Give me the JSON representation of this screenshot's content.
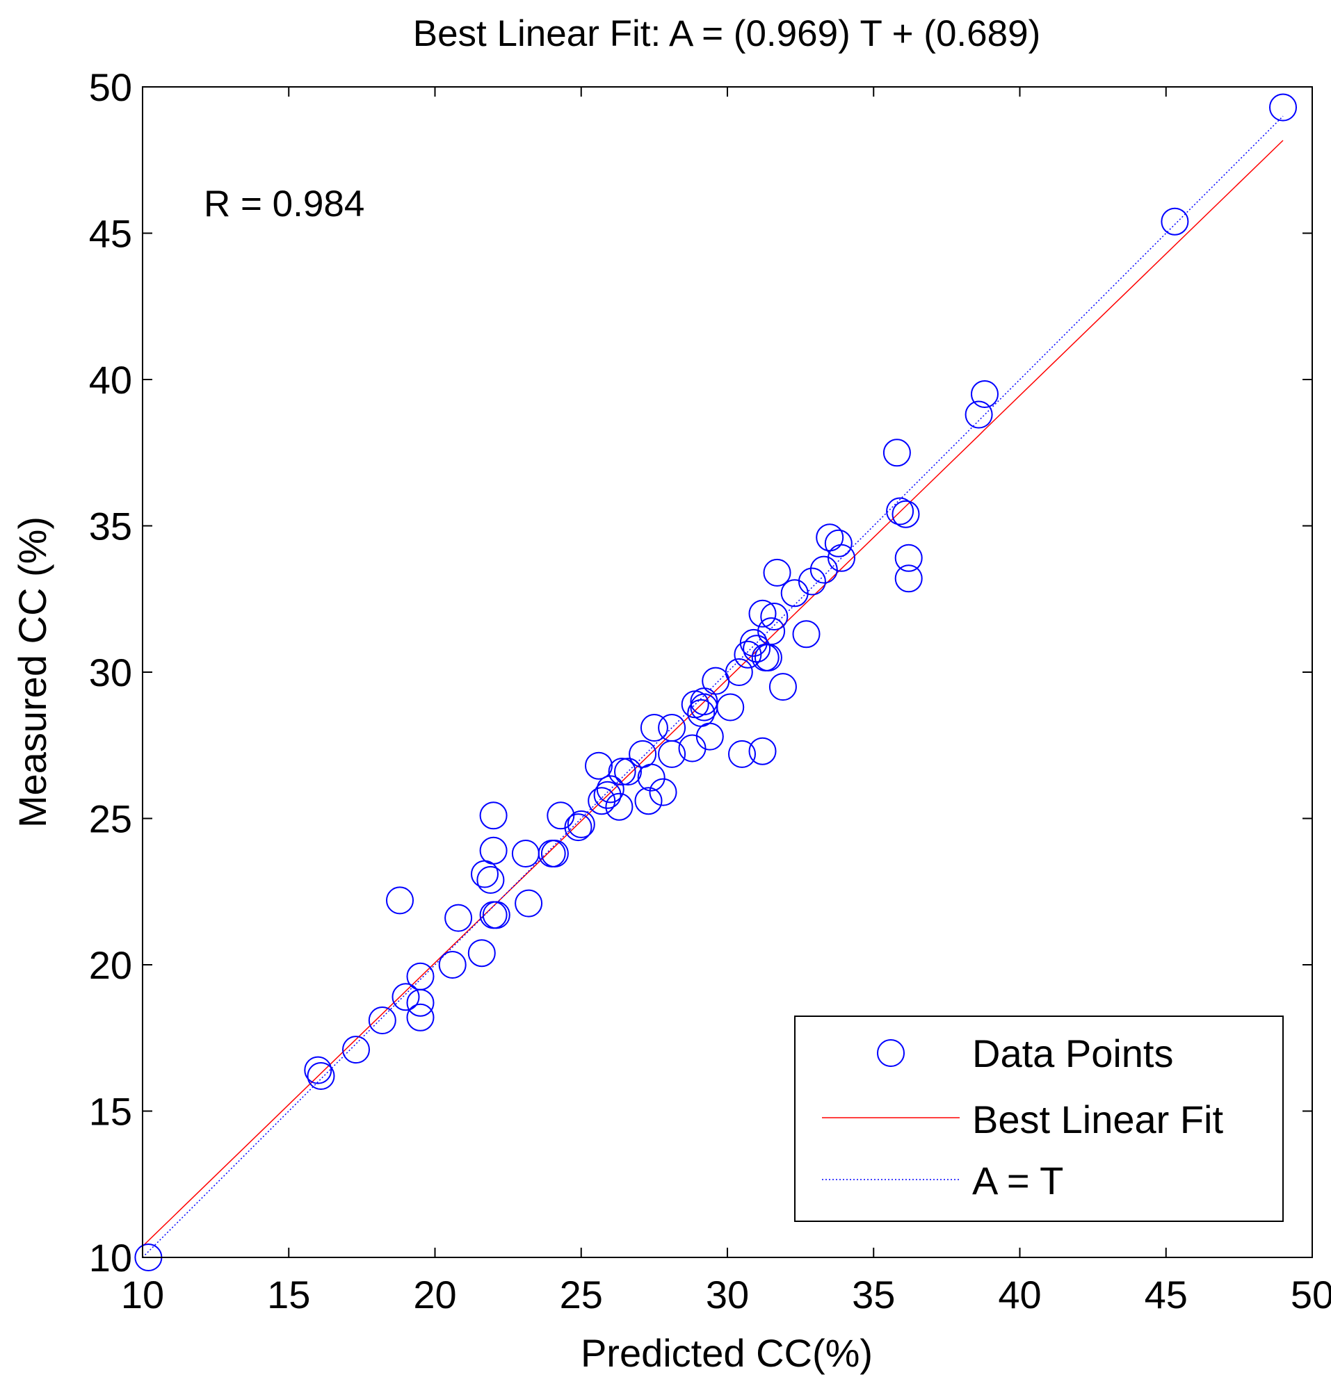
{
  "chart_data": {
    "type": "scatter",
    "title": "Best Linear Fit:  A = (0.969) T + (0.689)",
    "xlabel": "Predicted CC(%)",
    "ylabel": "Measured CC (%)",
    "annotation": "R = 0.984",
    "xlim": [
      10,
      50
    ],
    "ylim": [
      10,
      50
    ],
    "xticks": [
      "10",
      "15",
      "20",
      "25",
      "30",
      "35",
      "40",
      "45",
      "50"
    ],
    "yticks": [
      "10",
      "15",
      "20",
      "25",
      "30",
      "35",
      "40",
      "45",
      "50"
    ],
    "grid": false,
    "legend": {
      "position": "bottom-right",
      "entries": [
        "Data Points",
        "Best Linear Fit",
        "A = T"
      ]
    },
    "series": [
      {
        "name": "Data Points",
        "kind": "scatter",
        "marker": "circle-open",
        "color": "#0000ff",
        "points": [
          [
            10.2,
            10.0
          ],
          [
            16.0,
            16.4
          ],
          [
            16.1,
            16.2
          ],
          [
            17.3,
            17.1
          ],
          [
            18.2,
            18.1
          ],
          [
            18.8,
            22.2
          ],
          [
            19.0,
            18.9
          ],
          [
            19.5,
            19.6
          ],
          [
            19.5,
            18.7
          ],
          [
            19.5,
            18.2
          ],
          [
            20.6,
            20.0
          ],
          [
            20.8,
            21.6
          ],
          [
            21.6,
            20.4
          ],
          [
            21.7,
            23.1
          ],
          [
            21.9,
            22.9
          ],
          [
            22.0,
            25.1
          ],
          [
            22.0,
            23.9
          ],
          [
            22.0,
            21.7
          ],
          [
            22.1,
            21.7
          ],
          [
            23.1,
            23.8
          ],
          [
            23.2,
            22.1
          ],
          [
            24.0,
            23.8
          ],
          [
            24.1,
            23.8
          ],
          [
            24.3,
            25.1
          ],
          [
            24.9,
            24.7
          ],
          [
            25.0,
            24.8
          ],
          [
            25.6,
            26.8
          ],
          [
            25.7,
            25.6
          ],
          [
            25.9,
            25.8
          ],
          [
            26.0,
            26.0
          ],
          [
            26.3,
            25.4
          ],
          [
            26.4,
            26.6
          ],
          [
            26.6,
            26.6
          ],
          [
            27.1,
            27.2
          ],
          [
            27.3,
            25.6
          ],
          [
            27.4,
            26.4
          ],
          [
            27.5,
            28.1
          ],
          [
            27.8,
            25.9
          ],
          [
            28.1,
            28.1
          ],
          [
            28.1,
            27.2
          ],
          [
            28.8,
            27.4
          ],
          [
            28.9,
            28.9
          ],
          [
            29.1,
            28.6
          ],
          [
            29.2,
            28.8
          ],
          [
            29.2,
            29.0
          ],
          [
            29.4,
            27.8
          ],
          [
            29.6,
            29.7
          ],
          [
            30.1,
            28.8
          ],
          [
            30.4,
            30.0
          ],
          [
            30.5,
            27.2
          ],
          [
            30.7,
            30.6
          ],
          [
            30.9,
            31.0
          ],
          [
            31.0,
            30.8
          ],
          [
            31.2,
            27.3
          ],
          [
            31.2,
            32.0
          ],
          [
            31.3,
            30.5
          ],
          [
            31.4,
            30.5
          ],
          [
            31.5,
            31.4
          ],
          [
            31.6,
            31.9
          ],
          [
            31.7,
            33.4
          ],
          [
            31.9,
            29.5
          ],
          [
            32.3,
            32.7
          ],
          [
            32.7,
            31.3
          ],
          [
            32.9,
            33.1
          ],
          [
            33.3,
            33.5
          ],
          [
            33.5,
            34.6
          ],
          [
            33.8,
            34.4
          ],
          [
            33.9,
            33.9
          ],
          [
            35.8,
            37.5
          ],
          [
            35.9,
            35.5
          ],
          [
            36.1,
            35.4
          ],
          [
            36.2,
            33.9
          ],
          [
            36.2,
            33.2
          ],
          [
            38.6,
            38.8
          ],
          [
            38.8,
            39.5
          ],
          [
            45.3,
            45.4
          ],
          [
            49.0,
            49.3
          ]
        ]
      },
      {
        "name": "Best Linear Fit",
        "kind": "line",
        "style": "solid",
        "color": "#ff0000",
        "x": [
          10.0,
          38.6,
          38.8,
          49.0
        ],
        "y": [
          10.38,
          38.09,
          38.29,
          48.17
        ]
      },
      {
        "name": "A = T",
        "kind": "line",
        "style": "dotted",
        "color": "#0000ff",
        "x": [
          10.0,
          49.0
        ],
        "y": [
          10.0,
          49.0
        ]
      }
    ]
  }
}
